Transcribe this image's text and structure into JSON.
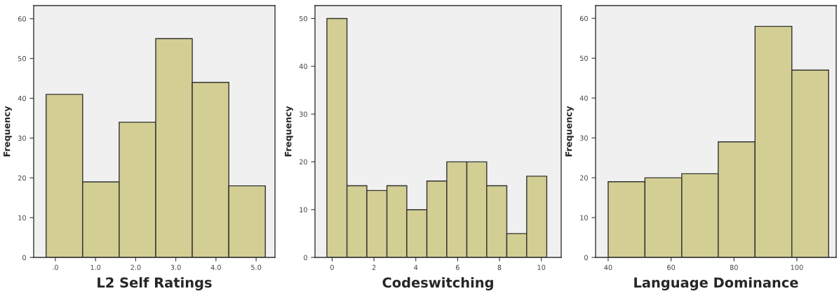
{
  "chart_data": [
    {
      "type": "histogram",
      "xlabel": "L2 Self Ratings",
      "ylabel": "Frequency",
      "color": "#d3ce93",
      "bins": [
        -0.23,
        0.68,
        1.59,
        2.5,
        3.41,
        4.32,
        5.23
      ],
      "values": [
        41,
        19,
        34,
        55,
        44,
        18
      ],
      "xlim": [
        -0.54,
        5.47
      ],
      "ylim": [
        0,
        63.3
      ],
      "xticks": [
        {
          "value": 0,
          "label": ".0"
        },
        {
          "value": 1,
          "label": "1.0"
        },
        {
          "value": 2,
          "label": "2.0"
        },
        {
          "value": 3,
          "label": "3.0"
        },
        {
          "value": 4,
          "label": "4.0"
        },
        {
          "value": 5,
          "label": "5.0"
        }
      ],
      "yticks": [
        0,
        10,
        20,
        30,
        40,
        50,
        60
      ],
      "grid": false
    },
    {
      "type": "histogram",
      "xlabel": "Codeswitching",
      "ylabel": "Frequency",
      "color": "#d3ce93",
      "bins": [
        -0.25,
        0.71,
        1.66,
        2.62,
        3.57,
        4.53,
        5.48,
        6.44,
        7.39,
        8.35,
        9.3,
        10.26
      ],
      "values": [
        50,
        15,
        14,
        15,
        10,
        16,
        20,
        20,
        15,
        5,
        17
      ],
      "xlim": [
        -0.82,
        10.95
      ],
      "ylim": [
        0,
        52.7
      ],
      "xticks": [
        0,
        2,
        4,
        6,
        8,
        10
      ],
      "yticks": [
        0,
        10,
        20,
        30,
        40,
        50
      ],
      "grid": false
    },
    {
      "type": "histogram",
      "xlabel": "Language Dominance",
      "ylabel": "Frequency",
      "color": "#d3ce93",
      "bins": [
        40,
        51.7,
        63.4,
        75,
        86.7,
        98.4,
        110.1
      ],
      "values": [
        19,
        20,
        21,
        29,
        58,
        47
      ],
      "xlim": [
        36,
        112.5
      ],
      "ylim": [
        0,
        63.2
      ],
      "xticks": [
        40,
        60,
        80,
        100
      ],
      "yticks": [
        0,
        10,
        20,
        30,
        40,
        50,
        60
      ],
      "grid": false
    }
  ]
}
